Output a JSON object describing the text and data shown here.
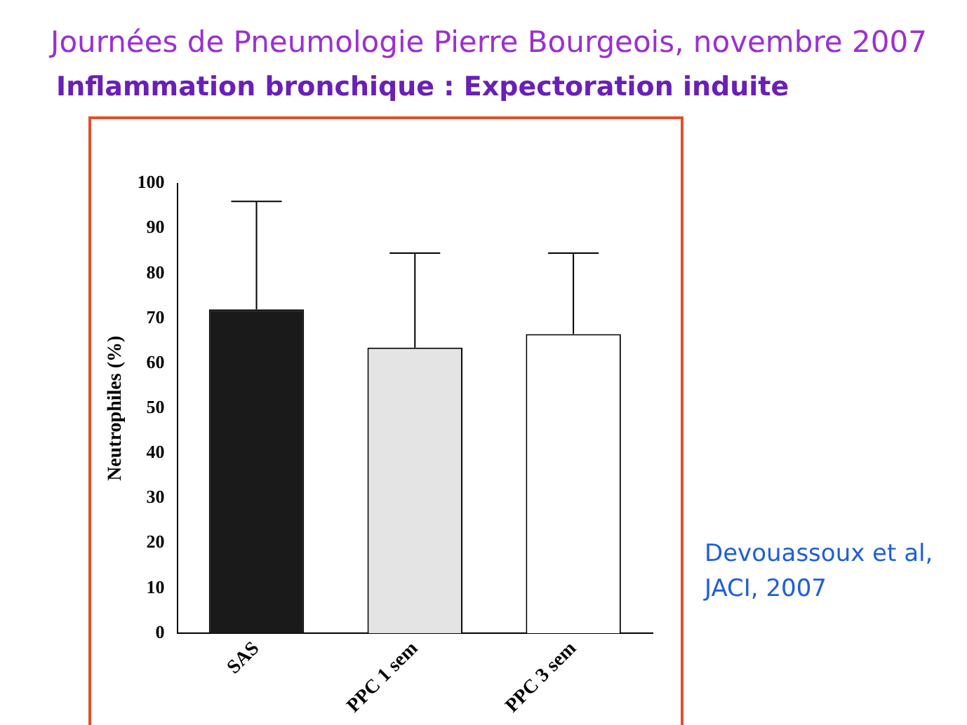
{
  "chart_data": {
    "type": "bar",
    "title": "Journées de Pneumologie Pierre Bourgeois, novembre 2007",
    "subtitle": "Inflammation bronchique : Expectoration induite",
    "ylabel": "Neutrophiles (%)",
    "categories": [
      "SAS",
      "PPC 1 sem",
      "PPC 3 sem"
    ],
    "values": [
      72,
      63.5,
      66.5
    ],
    "colors": [
      "#1a1a1a",
      "#e4e4e4",
      "#ffffff"
    ],
    "errors": [
      [
        72,
        96
      ],
      [
        63.5,
        84.5
      ],
      [
        66.5,
        84.5
      ]
    ],
    "ylim": [
      0,
      100
    ],
    "yticks": [
      0,
      10,
      20,
      30,
      40,
      50,
      60,
      70,
      80,
      90,
      100
    ],
    "grid": false,
    "legend": false,
    "annotations": [
      "Devouassoux et al, JACI, 2007"
    ]
  }
}
